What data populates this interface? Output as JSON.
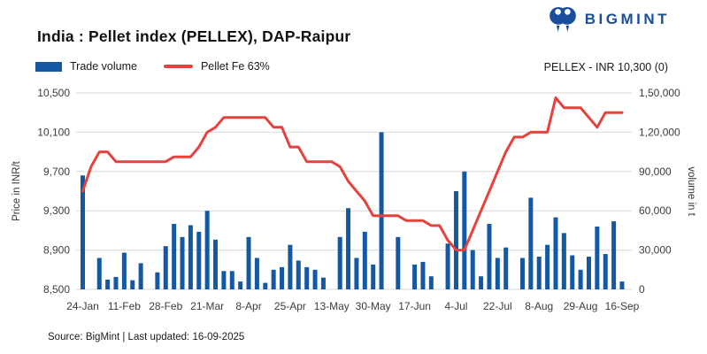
{
  "header": {
    "title": "India : Pellet index (PELLEX), DAP-Raipur",
    "brand": "BIGMINT"
  },
  "legend": [
    {
      "label": "Trade volume",
      "type": "bar"
    },
    {
      "label": "Pellet Fe 63%",
      "type": "line"
    }
  ],
  "annotation": {
    "text": "PELLEX - INR 10,300 (0)"
  },
  "footer": {
    "source": "Source: BigMint | Last updated: 16-09-2025"
  },
  "colors": {
    "bar": "#1457a3",
    "line": "#e6413c",
    "brand": "#1b4f9c",
    "grid": "#d9d9d9",
    "tick_text": "#3c3c3c",
    "title_text": "#121212"
  },
  "chart_data": {
    "type": "bar+line",
    "title": "India : Pellet index (PELLEX), DAP-Raipur",
    "x_labels": [
      "24-Jan",
      "11-Feb",
      "28-Feb",
      "21-Mar",
      "8-Apr",
      "25-Apr",
      "13-May",
      "30-May",
      "17-Jun",
      "4-Jul",
      "22-Jul",
      "8-Aug",
      "29-Aug",
      "16-Sep"
    ],
    "x_label_every": 5,
    "grid": "horizontal",
    "legend_position": "top-left",
    "left_axis": {
      "title": "Price in INR/t",
      "min": 8500,
      "max": 10500,
      "ticks": [
        "10,500",
        "10,100",
        "9,700",
        "9,300",
        "8,900",
        "8,500"
      ]
    },
    "right_axis": {
      "title": "volume in t",
      "min": 0,
      "max": 150000,
      "ticks": [
        "1,50,000",
        "1,20,000",
        "90,000",
        "60,000",
        "30,000",
        "0"
      ]
    },
    "series": [
      {
        "name": "Trade volume",
        "type": "bar",
        "axis": "right",
        "values": [
          87000,
          0,
          24000,
          7500,
          9500,
          28000,
          7000,
          20000,
          0,
          13000,
          33000,
          50000,
          40000,
          49000,
          44000,
          60000,
          38000,
          14000,
          14000,
          6000,
          40000,
          24000,
          5000,
          15000,
          17000,
          34000,
          22000,
          17000,
          15000,
          9000,
          0,
          40000,
          62000,
          24000,
          44000,
          19000,
          120000,
          0,
          40000,
          0,
          19000,
          21000,
          10000,
          0,
          35000,
          75000,
          90000,
          30000,
          10000,
          50000,
          24000,
          32000,
          0,
          24000,
          70000,
          25000,
          34000,
          55000,
          43000,
          26000,
          15000,
          25000,
          48000,
          27000,
          52000,
          6000
        ]
      },
      {
        "name": "Pellet Fe 63%",
        "type": "line",
        "axis": "left",
        "values": [
          9500,
          9750,
          9900,
          9900,
          9800,
          9800,
          9800,
          9800,
          9800,
          9800,
          9800,
          9850,
          9850,
          9850,
          9950,
          10100,
          10150,
          10250,
          10250,
          10250,
          10250,
          10250,
          10250,
          10150,
          10150,
          9950,
          9950,
          9800,
          9800,
          9800,
          9800,
          9750,
          9600,
          9500,
          9400,
          9250,
          9250,
          9250,
          9250,
          9200,
          9200,
          9200,
          9150,
          9150,
          9000,
          8900,
          8900,
          9100,
          9300,
          9500,
          9700,
          9900,
          10050,
          10050,
          10100,
          10100,
          10100,
          10450,
          10350,
          10350,
          10350,
          10250,
          10150,
          10300,
          10300,
          10300
        ]
      }
    ],
    "latest_value_label": "PELLEX - INR 10,300 (0)"
  }
}
